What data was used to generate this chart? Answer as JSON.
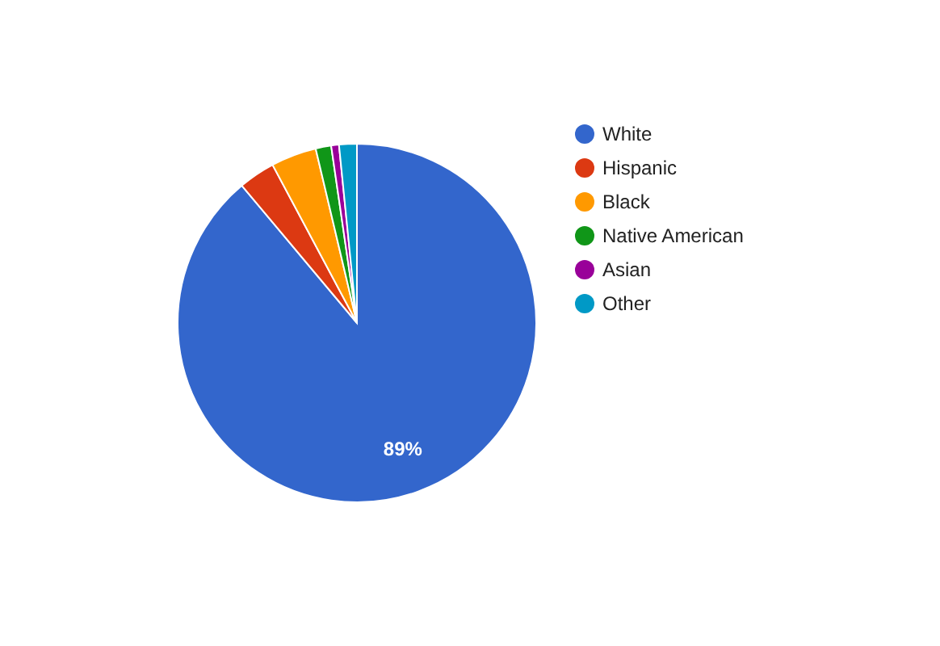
{
  "chart_data": {
    "type": "pie",
    "categories": [
      "White",
      "Hispanic",
      "Black",
      "Native American",
      "Asian",
      "Other"
    ],
    "values": [
      88.9,
      3.3,
      4.1,
      1.4,
      0.7,
      1.6
    ],
    "colors": [
      "#3366cc",
      "#dc3912",
      "#ff9900",
      "#109618",
      "#990099",
      "#0099c6"
    ],
    "value_labels": [
      "89%",
      null,
      null,
      null,
      null,
      null
    ],
    "legend": "right"
  }
}
